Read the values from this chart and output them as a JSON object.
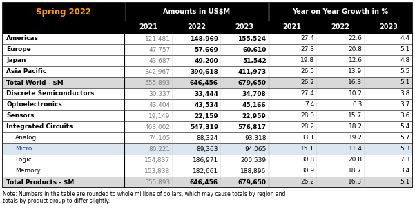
{
  "title": "Spring 2022",
  "header1": "Amounts in US$M",
  "header2": "Year on Year Growth in %",
  "col_headers": [
    "2021",
    "2022",
    "2023",
    "2021",
    "2022",
    "2023"
  ],
  "rows": [
    {
      "label": "Americas",
      "indent": 0,
      "bold_label": true,
      "vals": [
        "121,481",
        "148,969",
        "155,524",
        "27.4",
        "22.6",
        "4.4"
      ],
      "bold_vals": [
        false,
        true,
        true,
        false,
        false,
        false
      ],
      "row_bg": "#ffffff",
      "label_color": "#000000"
    },
    {
      "label": "Europe",
      "indent": 0,
      "bold_label": true,
      "vals": [
        "47,757",
        "57,669",
        "60,610",
        "27.3",
        "20.8",
        "5.1"
      ],
      "bold_vals": [
        false,
        true,
        true,
        false,
        false,
        false
      ],
      "row_bg": "#ffffff",
      "label_color": "#000000"
    },
    {
      "label": "Japan",
      "indent": 0,
      "bold_label": true,
      "vals": [
        "43,687",
        "49,200",
        "51,542",
        "19.8",
        "12.6",
        "4.8"
      ],
      "bold_vals": [
        false,
        true,
        true,
        false,
        false,
        false
      ],
      "row_bg": "#ffffff",
      "label_color": "#000000"
    },
    {
      "label": "Asia Pacific",
      "indent": 0,
      "bold_label": true,
      "vals": [
        "342,967",
        "390,618",
        "411,973",
        "26.5",
        "13.9",
        "5.5"
      ],
      "bold_vals": [
        false,
        true,
        true,
        false,
        false,
        false
      ],
      "row_bg": "#ffffff",
      "label_color": "#000000"
    },
    {
      "label": "Total World - $M",
      "indent": 0,
      "bold_label": true,
      "vals": [
        "555,893",
        "646,456",
        "679,650",
        "26.2",
        "16.3",
        "5.1"
      ],
      "bold_vals": [
        false,
        true,
        true,
        false,
        false,
        false
      ],
      "row_bg": "#d9d9d9",
      "label_color": "#000000"
    },
    {
      "label": "Discrete Semiconductors",
      "indent": 0,
      "bold_label": true,
      "vals": [
        "30,337",
        "33,444",
        "34,708",
        "27.4",
        "10.2",
        "3.8"
      ],
      "bold_vals": [
        false,
        true,
        true,
        false,
        false,
        false
      ],
      "row_bg": "#ffffff",
      "label_color": "#000000"
    },
    {
      "label": "Optoelectronics",
      "indent": 0,
      "bold_label": true,
      "vals": [
        "43,404",
        "43,534",
        "45,166",
        "7.4",
        "0.3",
        "3.7"
      ],
      "bold_vals": [
        false,
        true,
        true,
        false,
        false,
        false
      ],
      "row_bg": "#ffffff",
      "label_color": "#000000"
    },
    {
      "label": "Sensors",
      "indent": 0,
      "bold_label": true,
      "vals": [
        "19,149",
        "22,159",
        "22,959",
        "28.0",
        "15.7",
        "3.6"
      ],
      "bold_vals": [
        false,
        true,
        true,
        false,
        false,
        false
      ],
      "row_bg": "#ffffff",
      "label_color": "#000000"
    },
    {
      "label": "Integrated Circuits",
      "indent": 0,
      "bold_label": true,
      "vals": [
        "463,002",
        "547,319",
        "576,817",
        "28.2",
        "18.2",
        "5.4"
      ],
      "bold_vals": [
        false,
        true,
        true,
        false,
        false,
        false
      ],
      "row_bg": "#ffffff",
      "label_color": "#000000"
    },
    {
      "label": "Analog",
      "indent": 1,
      "bold_label": false,
      "vals": [
        "74,105",
        "88,324",
        "93,318",
        "33.1",
        "19.2",
        "5.7"
      ],
      "bold_vals": [
        false,
        false,
        false,
        false,
        false,
        false
      ],
      "row_bg": "#ffffff",
      "label_color": "#000000"
    },
    {
      "label": "Micro",
      "indent": 1,
      "bold_label": false,
      "vals": [
        "80,221",
        "89,363",
        "94,065",
        "15.1",
        "11.4",
        "5.3"
      ],
      "bold_vals": [
        false,
        false,
        false,
        false,
        false,
        false
      ],
      "row_bg": "#dce6f1",
      "label_color": "#1f497d"
    },
    {
      "label": "Logic",
      "indent": 1,
      "bold_label": false,
      "vals": [
        "154,837",
        "186,971",
        "200,539",
        "30.8",
        "20.8",
        "7.3"
      ],
      "bold_vals": [
        false,
        false,
        false,
        false,
        false,
        false
      ],
      "row_bg": "#ffffff",
      "label_color": "#000000"
    },
    {
      "label": "Memory",
      "indent": 1,
      "bold_label": false,
      "vals": [
        "153,838",
        "182,661",
        "188,896",
        "30.9",
        "18.7",
        "3.4"
      ],
      "bold_vals": [
        false,
        false,
        false,
        false,
        false,
        false
      ],
      "row_bg": "#ffffff",
      "label_color": "#000000"
    },
    {
      "label": "Total Products - $M",
      "indent": 0,
      "bold_label": true,
      "vals": [
        "555,893",
        "646,456",
        "679,650",
        "26.2",
        "16.3",
        "5.1"
      ],
      "bold_vals": [
        false,
        true,
        true,
        false,
        false,
        false
      ],
      "row_bg": "#d9d9d9",
      "label_color": "#000000"
    }
  ],
  "note": "Note: Numbers in the table are rounded to whole millions of dollars, which may cause totals by region and\ntotals by product group to differ slightly.",
  "title_color": "#ff9900",
  "figsize": [
    6.01,
    3.16
  ],
  "dpi": 100
}
